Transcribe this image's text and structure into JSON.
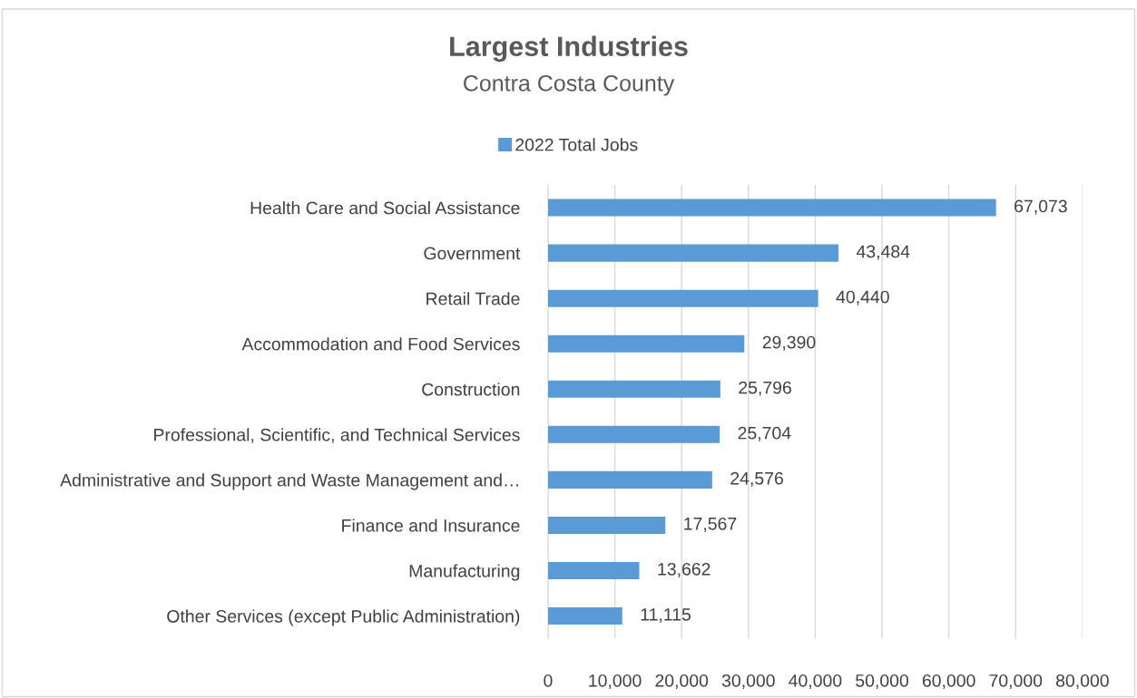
{
  "chart_data": {
    "type": "bar",
    "orientation": "horizontal",
    "title": "Largest Industries",
    "subtitle": "Contra Costa County",
    "categories": [
      "Health Care and Social Assistance",
      "Government",
      "Retail Trade",
      "Accommodation and Food Services",
      "Construction",
      "Professional, Scientific, and Technical Services",
      "Administrative and Support and Waste Management and…",
      "Finance and Insurance",
      "Manufacturing",
      "Other Services (except Public Administration)"
    ],
    "series": [
      {
        "name": "2022 Total Jobs",
        "color": "#5b9bd5",
        "values": [
          67073,
          43484,
          40440,
          29390,
          25796,
          25704,
          24576,
          17567,
          13662,
          11115
        ],
        "value_labels": [
          "67,073",
          "43,484",
          "40,440",
          "29,390",
          "25,796",
          "25,704",
          "24,576",
          "17,567",
          "13,662",
          "11,115"
        ]
      }
    ],
    "xlim": [
      0,
      80000
    ],
    "xticks": [
      0,
      {
        "value": 10000,
        "label": "10,000"
      },
      {
        "value": 20000,
        "label": "20,000"
      },
      {
        "value": 30000,
        "label": "30,000"
      },
      {
        "value": 40000,
        "label": "40,000"
      },
      {
        "value": 50000,
        "label": "50,000"
      },
      {
        "value": 60000,
        "label": "60,000"
      },
      {
        "value": 70000,
        "label": "70,000"
      },
      {
        "value": 80000,
        "label": "80,000"
      }
    ],
    "grid": "x",
    "legend": "top"
  }
}
